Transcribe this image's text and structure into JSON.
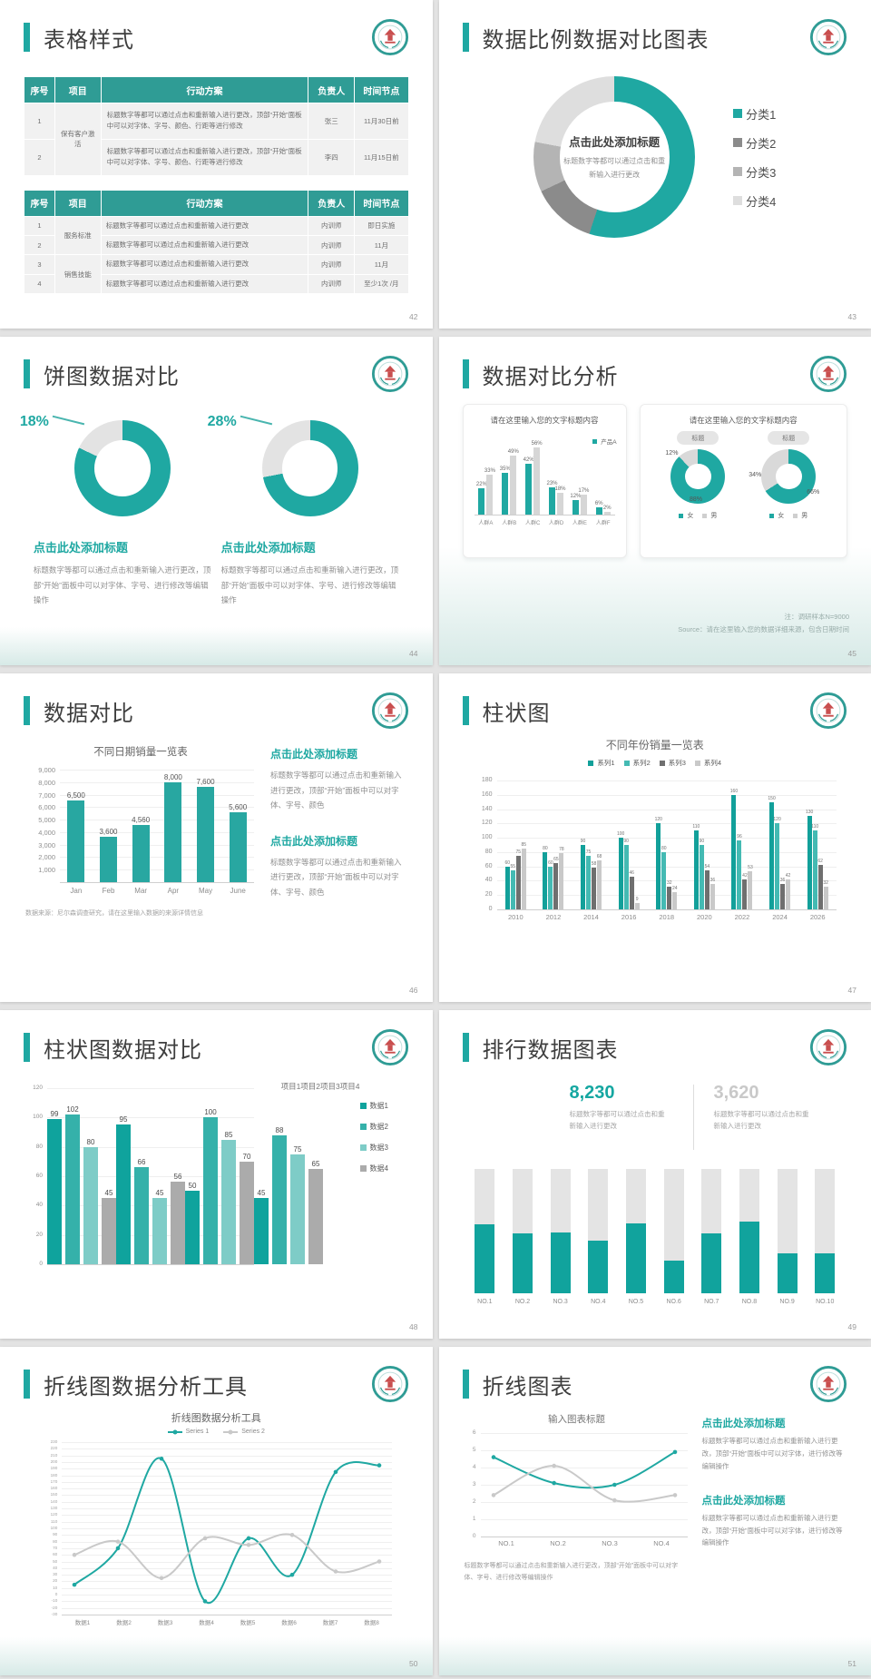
{
  "page": {
    "background": "#e3e3e3"
  },
  "colors": {
    "teal": "#1fa8a2",
    "table_header": "#2f9c95",
    "gray_dark": "#6f6f6f",
    "gray": "#ababab",
    "gray_light": "#c9c9c9",
    "title_text": "#3e3e3e",
    "body_text": "#8f8f8f"
  },
  "slides": {
    "s42": {
      "title": "表格样式",
      "page": "42",
      "tables": [
        {
          "headers": [
            "序号",
            "项目",
            "行动方案",
            "负责人",
            "时间节点"
          ],
          "widths": [
            "8%",
            "12%",
            "54%",
            "12%",
            "14%"
          ],
          "rows": [
            [
              "1",
              "保有客户激活",
              "标题数字等都可以通过点击和重新输入进行更改，顶部“开始”面板中可以对字体、字号、颜色、行距等进行修改",
              "张三",
              "11月30日前"
            ],
            [
              "2",
              "",
              "标题数字等都可以通过点击和重新输入进行更改，顶部“开始”面板中可以对字体、字号、颜色、行距等进行修改",
              "李四",
              "11月15日前"
            ]
          ]
        },
        {
          "headers": [
            "序号",
            "项目",
            "行动方案",
            "负责人",
            "时间节点"
          ],
          "widths": [
            "8%",
            "12%",
            "54%",
            "12%",
            "14%"
          ],
          "rows": [
            [
              "1",
              "服务标准",
              "标题数字等都可以通过点击和重新输入进行更改",
              "内训师",
              "即日实施"
            ],
            [
              "2",
              "",
              "标题数字等都可以通过点击和重新输入进行更改",
              "内训师",
              "11月"
            ],
            [
              "3",
              "销售技能",
              "标题数字等都可以通过点击和重新输入进行更改",
              "内训师",
              "11月"
            ],
            [
              "4",
              "",
              "标题数字等都可以通过点击和重新输入进行更改",
              "内训师",
              "至少1次 /月"
            ]
          ]
        }
      ]
    },
    "s43": {
      "title": "数据比例数据对比图表",
      "page": "43"
    },
    "s44": {
      "title": "饼图数据对比",
      "page": "44",
      "item_title": "点击此处添加标题",
      "item_body": "标题数字等都可以通过点击和重新输入进行更改，顶部“开始”面板中可以对字体、字号、进行修改等编辑操作"
    },
    "s45": {
      "title": "数据对比分析",
      "page": "45",
      "card1_title": "请在这里输入您的文字标题内容",
      "card2_title": "请在这里输入您的文字标题内容",
      "note1": "注：调研样本N=9000",
      "note2": "Source：请在这里输入您的数据详细来源，包含日期时间"
    },
    "s46": {
      "title": "数据对比",
      "page": "46",
      "block_title": "点击此处添加标题",
      "block_body": "标题数字等都可以通过点击和重新输入进行更改，顶部“开始”面板中可以对字体、字号、颜色",
      "note": "数据来源：尼尔森调查研究，请在这里输入数据的来源详情信息"
    },
    "s47": {
      "title": "柱状图",
      "page": "47"
    },
    "s48": {
      "title": "柱状图数据对比",
      "page": "48"
    },
    "s49": {
      "title": "排行数据图表",
      "page": "49",
      "num1": "8,230",
      "num1_caption": "标题数字等都可以通过点击和重新输入进行更改",
      "num2": "3,620",
      "num2_caption": "标题数字等都可以通过点击和重新输入进行更改"
    },
    "s50": {
      "title": "折线图数据分析工具",
      "page": "50"
    },
    "s51": {
      "title": "折线图表",
      "page": "51",
      "block_title": "点击此处添加标题",
      "block_body": "标题数字等都可以通过点击和重新输入进行更改，顶部“开始”面板中可以对字体，进行修改等编辑操作",
      "note": "标题数字等都可以通过点击和重新输入进行更改，顶部“开始”面板中可以对字体、字号、进行修改等编辑操作"
    }
  },
  "chart_data": [
    {
      "slide": "43",
      "type": "pie",
      "labels": [
        "分类1",
        "分类2",
        "分类3",
        "分类4"
      ],
      "values": [
        55,
        13,
        10,
        22
      ],
      "colors": [
        "#1fa8a2",
        "#8b8b8b",
        "#b4b4b4",
        "#dedede"
      ],
      "from_deg": 0,
      "center_title": "点击此处添加标题",
      "center_body": "标题数字等都可以通过点击和重新输入进行更改",
      "legend": [
        {
          "label": "分类1",
          "color": "#1fa8a2"
        },
        {
          "label": "分类2",
          "color": "#8b8b8b"
        },
        {
          "label": "分类3",
          "color": "#b4b4b4"
        },
        {
          "label": "分类4",
          "color": "#dedede"
        }
      ]
    },
    {
      "slide": "44",
      "type": "pie",
      "labels": [
        "其他",
        "主体"
      ],
      "values": [
        18,
        82
      ],
      "colors": [
        "#e3e3e3",
        "#1fa8a2"
      ],
      "from_deg": -64.8,
      "callout": "18%"
    },
    {
      "slide": "44",
      "type": "pie",
      "labels": [
        "其他",
        "主体"
      ],
      "values": [
        28,
        72
      ],
      "colors": [
        "#e3e3e3",
        "#1fa8a2"
      ],
      "from_deg": -100.8,
      "callout": "28%"
    },
    {
      "slide": "45",
      "type": "bar",
      "categories": [
        "人群A",
        "人群B",
        "人群C",
        "人群D",
        "人群E",
        "人群F"
      ],
      "series": [
        {
          "name": "产品A",
          "color": "#1fa8a2",
          "values": [
            22,
            35,
            42,
            23,
            12,
            6
          ]
        },
        {
          "name": "",
          "color": "#d6d6d6",
          "values": [
            33,
            49,
            56,
            18,
            17,
            2
          ]
        }
      ],
      "ymax": 62,
      "ymin": 0,
      "ytick_vals": [],
      "yticks": [],
      "show_values": true,
      "value_suffix": "%",
      "legend": [
        {
          "label": "产品A",
          "color": "#1fa8a2"
        }
      ],
      "legend_pos": "tr"
    },
    {
      "slide": "45",
      "type": "pie",
      "pill": "标题",
      "labels": [
        "女",
        "男"
      ],
      "values": [
        88,
        12
      ],
      "colors": [
        "#1fa8a2",
        "#d9d9d9"
      ],
      "from_deg": 0,
      "labels_on": [
        {
          "text": "12%",
          "cls": "pos-tl"
        },
        {
          "text": "88%",
          "cls": "pos-bb"
        }
      ],
      "legend": [
        {
          "label": "女",
          "color": "#1fa8a2"
        },
        {
          "label": "男",
          "color": "#cfcfcf"
        }
      ]
    },
    {
      "slide": "45",
      "type": "pie",
      "pill": "标题",
      "labels": [
        "女",
        "男"
      ],
      "values": [
        66,
        34
      ],
      "colors": [
        "#1fa8a2",
        "#d9d9d9"
      ],
      "from_deg": 0,
      "labels_on": [
        {
          "text": "34%",
          "cls": "pos-l"
        },
        {
          "text": "66%",
          "cls": "pos-br"
        }
      ],
      "legend": [
        {
          "label": "女",
          "color": "#1fa8a2"
        },
        {
          "label": "男",
          "color": "#cfcfcf"
        }
      ]
    },
    {
      "slide": "46",
      "type": "bar",
      "title": "不同日期销量一览表",
      "categories": [
        "Jan",
        "Feb",
        "Mar",
        "Apr",
        "May",
        "June"
      ],
      "series": [
        {
          "name": "销量",
          "color": "#28a7a1",
          "values": [
            6500,
            3600,
            4560,
            8000,
            7600,
            5600
          ],
          "value_labels": [
            "6,500",
            "3,600",
            "4,560",
            "8,000",
            "7,600",
            "5,600"
          ]
        }
      ],
      "ymax": 9000,
      "ymin": 0,
      "ytick_vals": [
        9000,
        8000,
        7000,
        6000,
        5000,
        4000,
        3000,
        2000,
        1000
      ],
      "yticks": [
        "9,000",
        "8,000",
        "7,000",
        "6,000",
        "5,000",
        "4,000",
        "3,000",
        "2,000",
        "1,000"
      ],
      "show_values": true
    },
    {
      "slide": "47",
      "type": "bar",
      "title": "不同年份销量一览表",
      "categories": [
        "2010",
        "2012",
        "2014",
        "2016",
        "2018",
        "2020",
        "2022",
        "2024",
        "2026"
      ],
      "series": [
        {
          "name": "系列1",
          "color": "#12a09a",
          "values": [
            60,
            80,
            90,
            100,
            120,
            110,
            160,
            150,
            130
          ]
        },
        {
          "name": "系列2",
          "color": "#44bab3",
          "values": [
            55,
            60,
            75,
            90,
            80,
            90,
            96,
            120,
            110
          ]
        },
        {
          "name": "系列3",
          "color": "#6f6f6f",
          "values": [
            75,
            65,
            58,
            46,
            32,
            54,
            42,
            36,
            62
          ]
        },
        {
          "name": "系列4",
          "color": "#c9c9c9",
          "values": [
            85,
            78,
            68,
            9,
            24,
            36,
            53,
            42,
            32
          ]
        }
      ],
      "ymax": 180,
      "ymin": 0,
      "ytick_vals": [
        180,
        160,
        140,
        120,
        100,
        80,
        60,
        40,
        20,
        0
      ],
      "yticks": [
        "180",
        "160",
        "140",
        "120",
        "100",
        "80",
        "60",
        "40",
        "20",
        "0"
      ],
      "show_values": true,
      "legend": [
        {
          "label": "系列1",
          "color": "#12a09a"
        },
        {
          "label": "系列2",
          "color": "#44bab3"
        },
        {
          "label": "系列3",
          "color": "#6f6f6f"
        },
        {
          "label": "系列4",
          "color": "#c9c9c9"
        }
      ],
      "legend_pos": "center"
    },
    {
      "slide": "48",
      "type": "bar",
      "categories": [
        "项目1",
        "项目2",
        "项目3",
        "项目4"
      ],
      "series": [
        {
          "name": "数据1",
          "color": "#0fa39d",
          "values": [
            99,
            95,
            50,
            45
          ]
        },
        {
          "name": "数据2",
          "color": "#35b1aa",
          "values": [
            102,
            66,
            100,
            88
          ]
        },
        {
          "name": "数据3",
          "color": "#7eccc7",
          "values": [
            80,
            45,
            85,
            75
          ]
        },
        {
          "name": "数据4",
          "color": "#ababab",
          "values": [
            45,
            56,
            70,
            65
          ]
        }
      ],
      "ymax": 120,
      "ymin": 0,
      "ytick_vals": [
        120,
        100,
        80,
        60,
        40,
        20,
        0
      ],
      "yticks": [
        "120",
        "100",
        "80",
        "60",
        "40",
        "20",
        "0"
      ],
      "show_values": true,
      "legend": [
        {
          "label": "数据1",
          "color": "#0fa39d"
        },
        {
          "label": "数据2",
          "color": "#35b1aa"
        },
        {
          "label": "数据3",
          "color": "#7eccc7"
        },
        {
          "label": "数据4",
          "color": "#ababab"
        }
      ],
      "legend_pos": "side"
    },
    {
      "slide": "49",
      "type": "stacked",
      "categories": [
        "NO.1",
        "NO.2",
        "NO.3",
        "NO.4",
        "NO.5",
        "NO.6",
        "NO.7",
        "NO.8",
        "NO.9",
        "NO.10"
      ],
      "teal_pct": [
        52,
        45,
        46,
        40,
        53,
        25,
        45,
        54,
        30,
        30
      ],
      "total_pct": 94,
      "bottom_color": "#11a39d",
      "top_color": "#e4e4e4"
    },
    {
      "slide": "50",
      "type": "line",
      "title": "折线图数据分析工具",
      "x": [
        "数据1",
        "数据2",
        "数据3",
        "数据4",
        "数据5",
        "数据6",
        "数据7",
        "数据8"
      ],
      "series": [
        {
          "name": "Series 1",
          "color": "#1fa8a2",
          "values": [
            15,
            70,
            205,
            -10,
            85,
            30,
            185,
            195
          ]
        },
        {
          "name": "Series 2",
          "color": "#c9c9c9",
          "values": [
            60,
            80,
            25,
            85,
            75,
            90,
            35,
            50
          ]
        }
      ],
      "ymin": -30,
      "ymax": 230,
      "ytick_step": 10,
      "legend": [
        {
          "label": "Series 1",
          "color": "#1fa8a2"
        },
        {
          "label": "Series 2",
          "color": "#c9c9c9"
        }
      ]
    },
    {
      "slide": "51",
      "type": "line",
      "title": "输入图表标题",
      "x": [
        "NO.1",
        "NO.2",
        "NO.3",
        "NO.4"
      ],
      "series": [
        {
          "name": "",
          "color": "#1fa8a2",
          "values": [
            4.6,
            3.1,
            3.0,
            4.9
          ]
        },
        {
          "name": "",
          "color": "#c9c9c9",
          "values": [
            2.4,
            4.1,
            2.1,
            2.4
          ]
        }
      ],
      "ymin": 0,
      "ymax": 6,
      "ytick_step": 1
    }
  ]
}
